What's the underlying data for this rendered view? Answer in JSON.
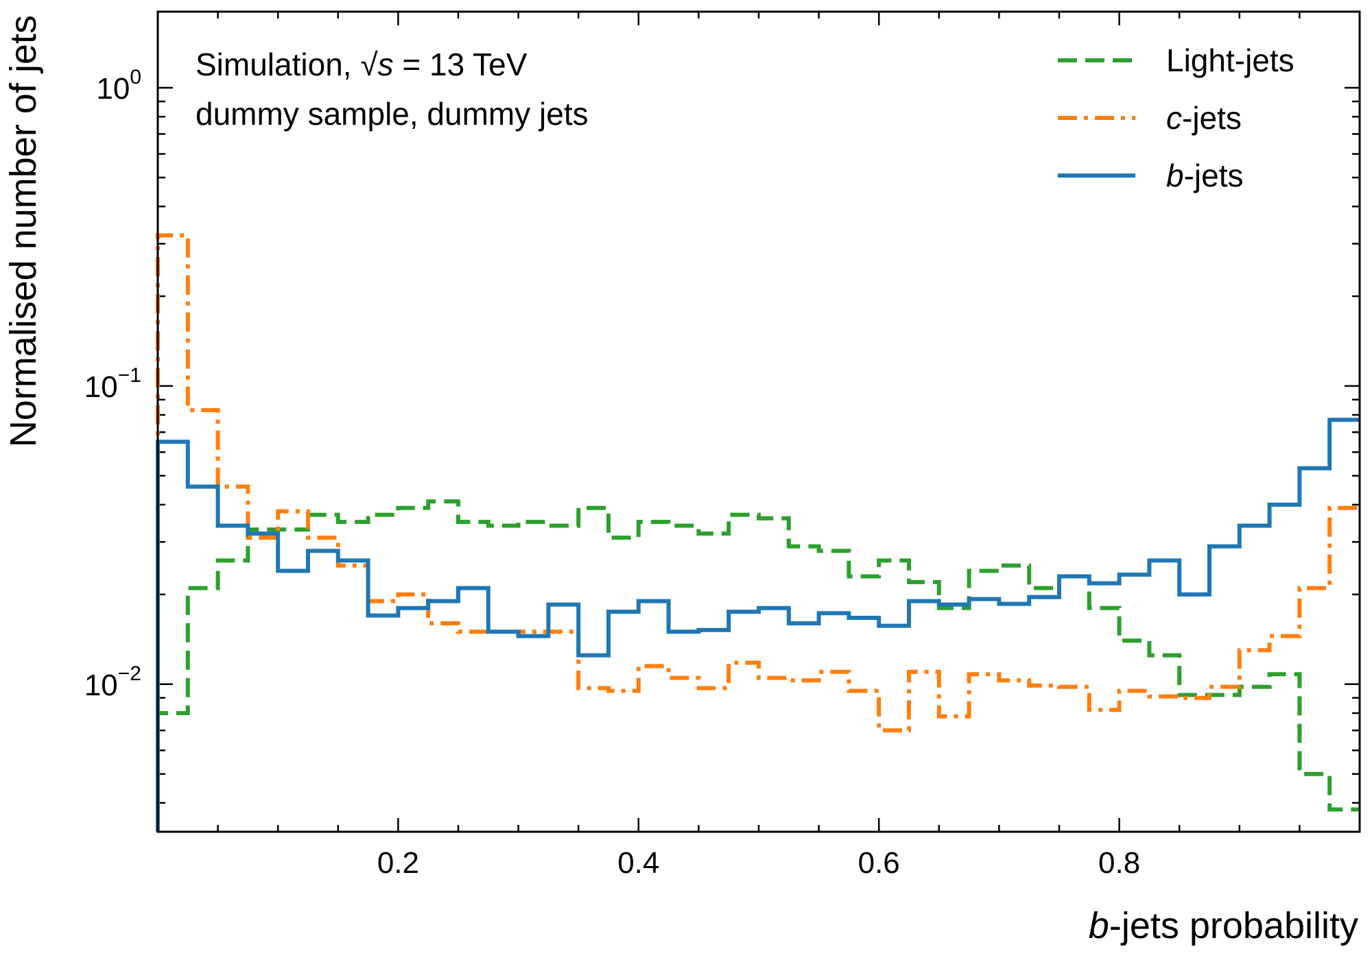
{
  "chart_data": {
    "type": "histogram",
    "title": "",
    "annotation": {
      "line1_prefix": "Simulation, ",
      "line1_sqrt": "√",
      "line1_s": "s",
      "line1_suffix": " = 13 TeV",
      "line2": "dummy sample, dummy jets"
    },
    "xlabel": {
      "italic": "b",
      "rest": "-jets probability"
    },
    "ylabel": "Normalised number of jets",
    "xlim": [
      0,
      1
    ],
    "ylim": [
      0.0032,
      1.8
    ],
    "yscale": "log",
    "xticks": [
      {
        "value": 0.2,
        "label": "0.2"
      },
      {
        "value": 0.4,
        "label": "0.4"
      },
      {
        "value": 0.6,
        "label": "0.6"
      },
      {
        "value": 0.8,
        "label": "0.8"
      }
    ],
    "yticks": [
      {
        "value": 1,
        "base": "10",
        "exp": "0"
      },
      {
        "value": 0.1,
        "base": "10",
        "exp": "−1"
      },
      {
        "value": 0.01,
        "base": "10",
        "exp": "−2"
      }
    ],
    "legend_position": "top-right",
    "bin_edges": [
      0,
      0.025,
      0.05,
      0.075,
      0.1,
      0.125,
      0.15,
      0.175,
      0.2,
      0.225,
      0.25,
      0.275,
      0.3,
      0.325,
      0.35,
      0.375,
      0.4,
      0.425,
      0.45,
      0.475,
      0.5,
      0.525,
      0.55,
      0.575,
      0.6,
      0.625,
      0.65,
      0.675,
      0.7,
      0.725,
      0.75,
      0.775,
      0.8,
      0.825,
      0.85,
      0.875,
      0.9,
      0.925,
      0.95,
      0.975,
      1.0
    ],
    "series": [
      {
        "name": "Light-jets",
        "name_italic": "",
        "name_rest": "Light-jets",
        "color": "#2ca02c",
        "dash": "dashed",
        "values": [
          0.008,
          0.021,
          0.026,
          0.033,
          0.033,
          0.037,
          0.035,
          0.037,
          0.039,
          0.041,
          0.035,
          0.034,
          0.035,
          0.034,
          0.039,
          0.031,
          0.035,
          0.034,
          0.032,
          0.037,
          0.036,
          0.029,
          0.028,
          0.023,
          0.026,
          0.022,
          0.018,
          0.024,
          0.025,
          0.021,
          0.023,
          0.018,
          0.014,
          0.0125,
          0.0092,
          0.0092,
          0.0098,
          0.0108,
          0.005,
          0.0038
        ]
      },
      {
        "name": "c-jets",
        "name_italic": "c",
        "name_rest": "-jets",
        "color": "#ff7f0e",
        "dash": "dashdot",
        "values": [
          0.32,
          0.083,
          0.046,
          0.031,
          0.038,
          0.031,
          0.025,
          0.019,
          0.02,
          0.016,
          0.015,
          0.015,
          0.015,
          0.015,
          0.0097,
          0.0095,
          0.0115,
          0.0105,
          0.0097,
          0.0118,
          0.0105,
          0.0103,
          0.011,
          0.0095,
          0.007,
          0.011,
          0.0078,
          0.0108,
          0.0103,
          0.0099,
          0.0098,
          0.0082,
          0.0095,
          0.0091,
          0.009,
          0.0098,
          0.013,
          0.0145,
          0.021,
          0.039
        ]
      },
      {
        "name": "b-jets",
        "name_italic": "b",
        "name_rest": "-jets",
        "color": "#1f77b4",
        "dash": "solid",
        "values": [
          0.065,
          0.046,
          0.034,
          0.032,
          0.024,
          0.028,
          0.026,
          0.017,
          0.018,
          0.019,
          0.021,
          0.015,
          0.0145,
          0.0185,
          0.0125,
          0.0175,
          0.019,
          0.015,
          0.0152,
          0.0175,
          0.018,
          0.016,
          0.0173,
          0.0167,
          0.0157,
          0.019,
          0.0185,
          0.0193,
          0.0186,
          0.0196,
          0.023,
          0.0218,
          0.0233,
          0.026,
          0.02,
          0.029,
          0.034,
          0.04,
          0.053,
          0.077
        ]
      }
    ]
  }
}
